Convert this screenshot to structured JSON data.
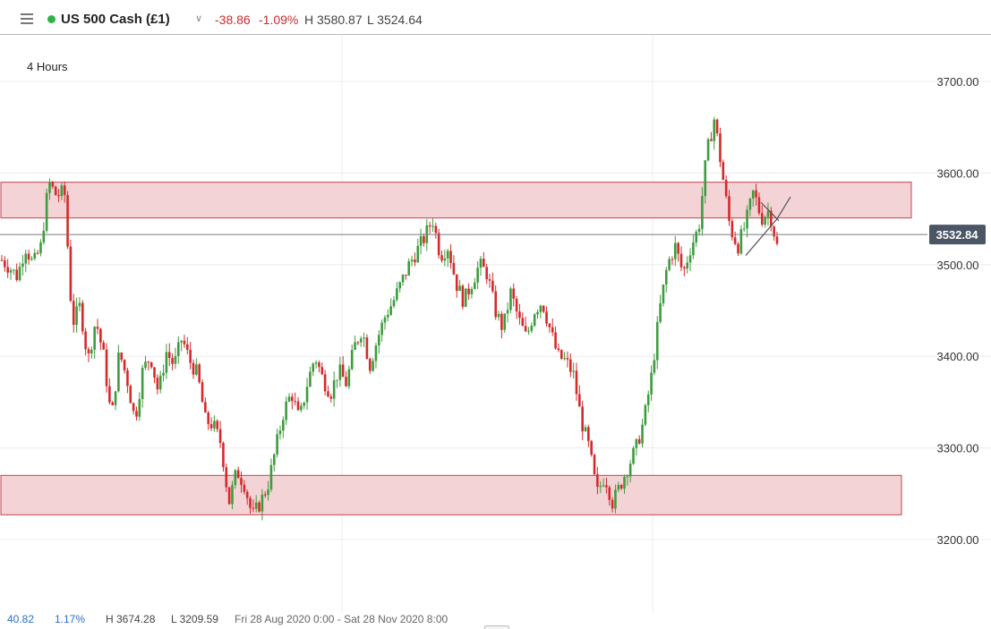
{
  "header": {
    "instrument": "US 500 Cash (£1)",
    "change": "-38.86",
    "change_pct": "-1.09%",
    "high": "H 3580.87",
    "low": "L 3524.64",
    "status_color": "#2db24a",
    "menu_icon": "hamburger-icon",
    "dropdown_icon": "chevron-down-icon"
  },
  "timeframe": "4 Hours",
  "footer": {
    "last": "40.82",
    "change_pct": "1.17%",
    "high": "H 3674.28",
    "low": "L 3209.59",
    "range": "Fri 28 Aug 2020 0:00 - Sat 28 Nov 2020 8:00"
  },
  "chart_data": {
    "type": "candlestick",
    "yaxis": {
      "ticks": [
        3200,
        3300,
        3400,
        3500,
        3600,
        3700
      ],
      "tick_labels": [
        "3200.00",
        "3300.00",
        "3400.00",
        "3500.00",
        "3600.00",
        "3700.00"
      ],
      "range": [
        3175,
        3750
      ],
      "position": "right"
    },
    "current_price": 3532.84,
    "current_price_label": "3532.84",
    "colors": {
      "up": "#3d9c3d",
      "down": "#d42a2a",
      "zone_fill": "#f4d3d6",
      "zone_stroke": "#c9434c",
      "price_tag": "#4a5566"
    },
    "zones": [
      {
        "y_low": 3551,
        "y_high": 3590
      },
      {
        "y_low": 3227,
        "y_high": 3270
      }
    ],
    "close_path": [
      3505,
      3497,
      3487,
      3520,
      3500,
      3520,
      3590,
      3575,
      3580,
      3435,
      3455,
      3395,
      3440,
      3400,
      3330,
      3405,
      3375,
      3330,
      3385,
      3400,
      3360,
      3405,
      3390,
      3420,
      3395,
      3380,
      3330,
      3325,
      3305,
      3240,
      3275,
      3260,
      3225,
      3240,
      3260,
      3300,
      3340,
      3360,
      3330,
      3370,
      3400,
      3375,
      3360,
      3385,
      3370,
      3410,
      3430,
      3390,
      3420,
      3445,
      3460,
      3480,
      3500,
      3515,
      3530,
      3550,
      3510,
      3520,
      3480,
      3460,
      3480,
      3500,
      3490,
      3450,
      3430,
      3470,
      3440,
      3420,
      3450,
      3460,
      3430,
      3400,
      3395,
      3380,
      3330,
      3300,
      3250,
      3270,
      3240,
      3260,
      3280,
      3300,
      3330,
      3380,
      3450,
      3500,
      3520,
      3490,
      3520,
      3540,
      3620,
      3660,
      3600,
      3540,
      3520,
      3545,
      3580,
      3550,
      3560,
      3520
    ]
  }
}
